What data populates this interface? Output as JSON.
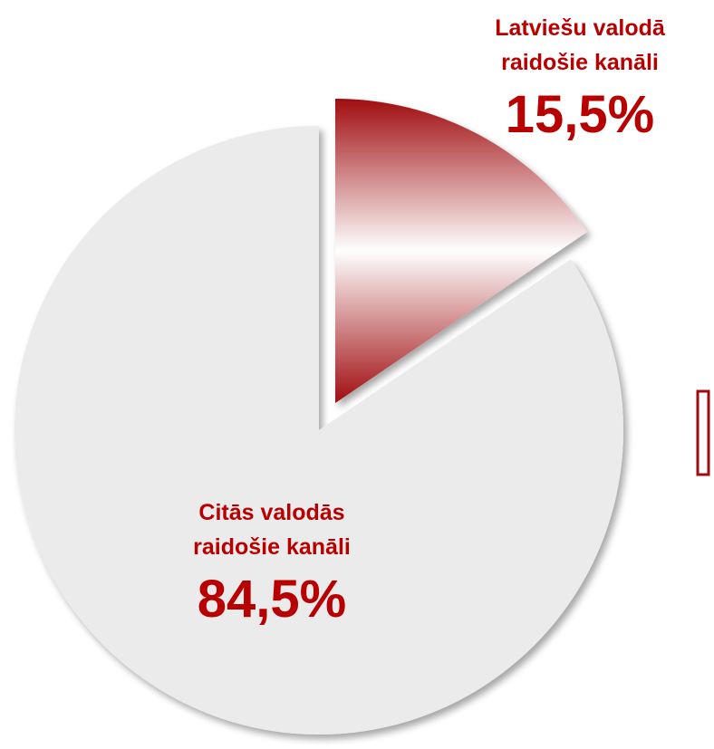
{
  "chart_data": {
    "type": "pie",
    "categories": [
      [
        "Latviešu valodā",
        "raidošie kanāli"
      ],
      [
        "Citās valodās",
        "raidošie kanāli"
      ]
    ],
    "values": [
      15.5,
      84.5
    ],
    "value_labels": [
      "15,5%",
      "84,5%"
    ],
    "colors": [
      "#a00d10",
      "#ebebeb"
    ]
  }
}
